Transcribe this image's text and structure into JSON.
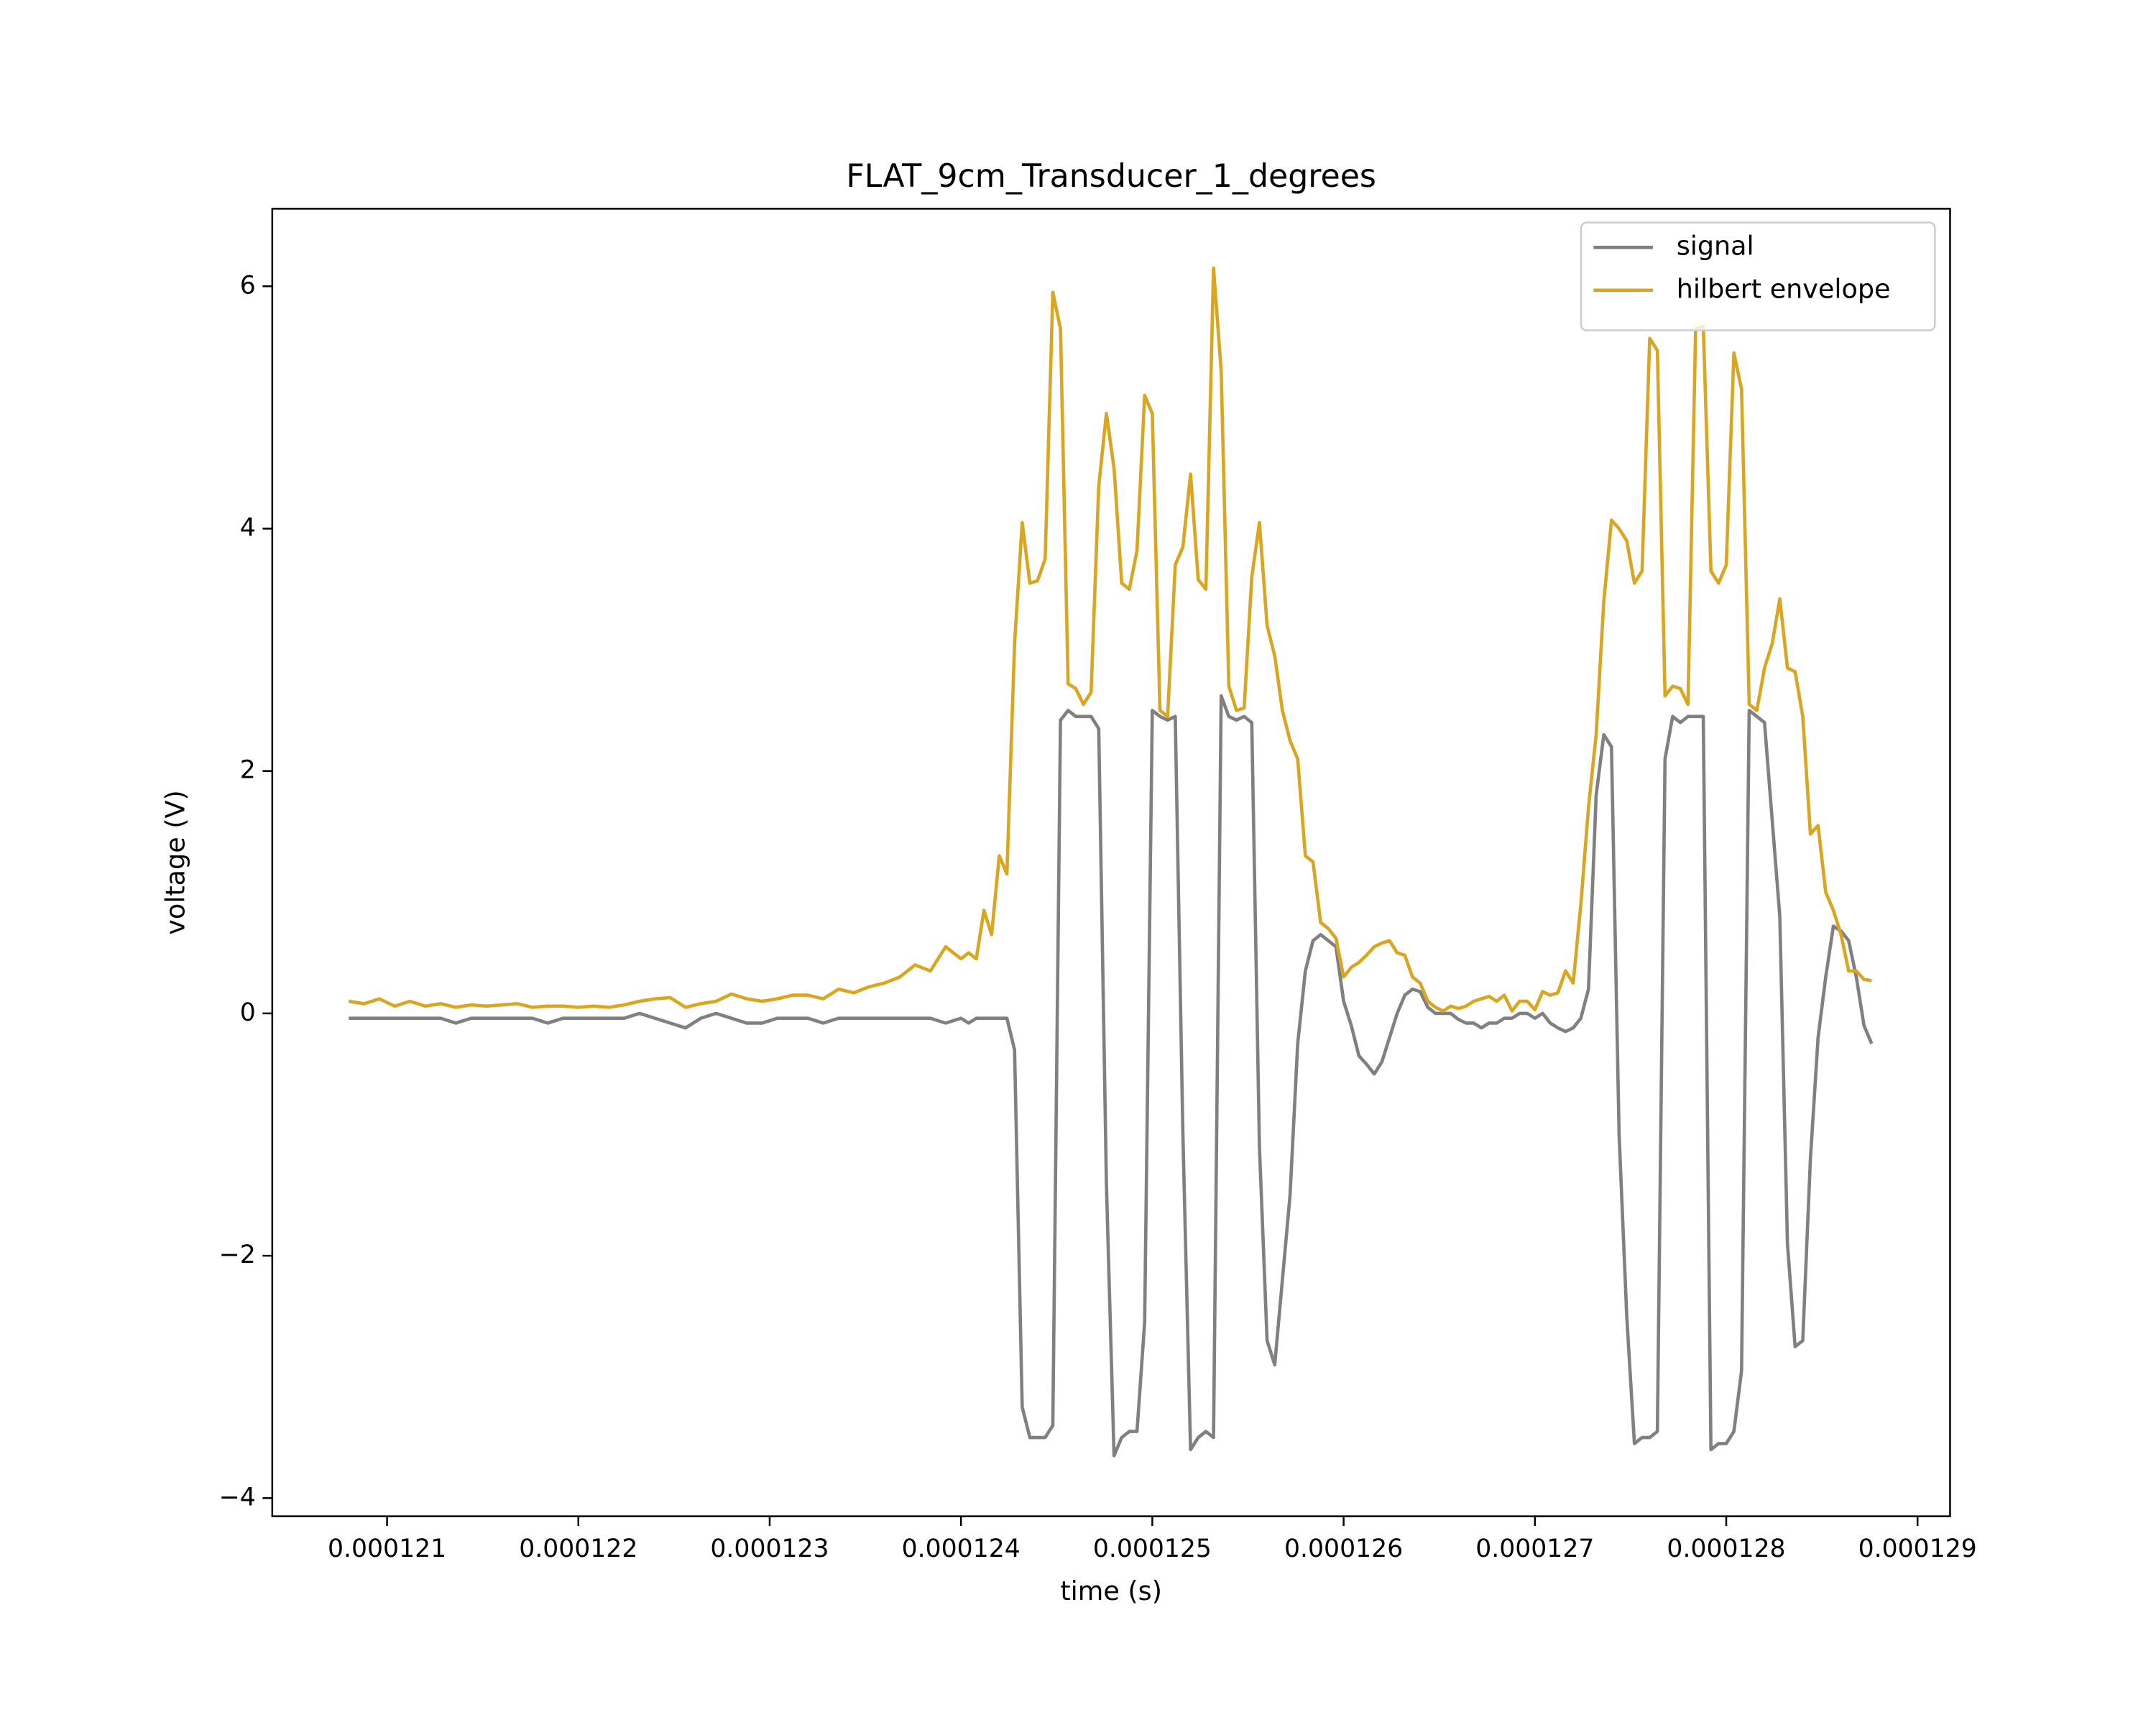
{
  "chart_data": {
    "type": "line",
    "title": "FLAT_9cm_Transducer_1_degrees",
    "x_label": "time (s)",
    "y_label": "voltage (V)",
    "xlim": [
      0.0001204,
      0.00012917
    ],
    "ylim": [
      -4.15,
      6.64
    ],
    "xticks": [
      0.000121,
      0.000122,
      0.000123,
      0.000124,
      0.000125,
      0.000126,
      0.000127,
      0.000128,
      0.000129
    ],
    "yticks": [
      {
        "value": -4,
        "label": "−4"
      },
      {
        "value": -2,
        "label": "−2"
      },
      0,
      2,
      4,
      6
    ],
    "legend": "upper right",
    "x": [
      0.0001208,
      0.00012088,
      0.00012096,
      0.00012104,
      0.00012112,
      0.0001212,
      0.00012128,
      0.00012136,
      0.00012144,
      0.00012152,
      0.0001216,
      0.00012168,
      0.00012176,
      0.00012184,
      0.00012192,
      0.000122,
      0.00012208,
      0.00012216,
      0.00012224,
      0.00012232,
      0.0001224,
      0.00012248,
      0.00012256,
      0.00012264,
      0.00012272,
      0.0001228,
      0.00012288,
      0.00012296,
      0.00012304,
      0.00012312,
      0.0001232,
      0.00012328,
      0.00012336,
      0.00012344,
      0.00012352,
      0.0001236,
      0.00012368,
      0.00012376,
      0.00012384,
      0.00012392,
      0.000124,
      0.00012404,
      0.00012408,
      0.00012412,
      0.00012416,
      0.0001242,
      0.00012424,
      0.00012428,
      0.00012432,
      0.00012436,
      0.0001244,
      0.00012444,
      0.00012448,
      0.00012452,
      0.00012456,
      0.0001246,
      0.00012464,
      0.00012468,
      0.00012472,
      0.00012476,
      0.0001248,
      0.00012484,
      0.00012488,
      0.00012492,
      0.00012496,
      0.000125,
      0.00012504,
      0.00012508,
      0.00012512,
      0.00012516,
      0.0001252,
      0.00012524,
      0.00012528,
      0.00012532,
      0.00012536,
      0.0001254,
      0.00012544,
      0.00012548,
      0.00012552,
      0.00012556,
      0.0001256,
      0.00012564,
      0.00012568,
      0.00012572,
      0.00012576,
      0.0001258,
      0.00012584,
      0.00012588,
      0.00012592,
      0.00012596,
      0.000126,
      0.00012604,
      0.00012608,
      0.00012612,
      0.00012616,
      0.0001262,
      0.00012624,
      0.00012628,
      0.00012632,
      0.00012636,
      0.0001264,
      0.00012644,
      0.00012648,
      0.00012652,
      0.00012656,
      0.0001266,
      0.00012664,
      0.00012668,
      0.00012672,
      0.00012676,
      0.0001268,
      0.00012684,
      0.00012688,
      0.00012692,
      0.00012696,
      0.000127,
      0.00012704,
      0.00012708,
      0.00012712,
      0.00012716,
      0.0001272,
      0.00012724,
      0.00012728,
      0.00012732,
      0.00012736,
      0.0001274,
      0.00012744,
      0.00012748,
      0.00012752,
      0.00012756,
      0.0001276,
      0.00012764,
      0.00012768,
      0.00012772,
      0.00012776,
      0.0001278,
      0.00012784,
      0.00012788,
      0.00012792,
      0.00012796,
      0.000128,
      0.00012804,
      0.00012808,
      0.00012812,
      0.00012816,
      0.0001282,
      0.00012824,
      0.00012828,
      0.00012832,
      0.00012836,
      0.0001284,
      0.00012844,
      0.00012848,
      0.00012852,
      0.00012856,
      0.0001286,
      0.00012864,
      0.00012868,
      0.00012872,
      0.00012876
    ],
    "series": [
      {
        "name": "signal",
        "color": "#808080",
        "values": [
          -0.04,
          -0.04,
          -0.04,
          -0.04,
          -0.04,
          -0.04,
          -0.04,
          -0.08,
          -0.04,
          -0.04,
          -0.04,
          -0.04,
          -0.04,
          -0.08,
          -0.04,
          -0.04,
          -0.04,
          -0.04,
          -0.04,
          0,
          -0.04,
          -0.08,
          -0.12,
          -0.04,
          0,
          -0.04,
          -0.08,
          -0.08,
          -0.04,
          -0.04,
          -0.04,
          -0.08,
          -0.04,
          -0.04,
          -0.04,
          -0.04,
          -0.04,
          -0.04,
          -0.04,
          -0.08,
          -0.04,
          -0.08,
          -0.04,
          -0.04,
          -0.04,
          -0.04,
          -0.04,
          -0.3,
          -3.25,
          -3.5,
          -3.5,
          -3.5,
          -3.4,
          2.42,
          2.5,
          2.45,
          2.45,
          2.45,
          2.35,
          -1.4,
          -3.65,
          -3.5,
          -3.45,
          -3.45,
          -2.55,
          2.5,
          2.45,
          2.42,
          2.45,
          -1.0,
          -3.6,
          -3.5,
          -3.45,
          -3.5,
          2.62,
          2.45,
          2.42,
          2.45,
          2.4,
          -1.1,
          -2.7,
          -2.9,
          -2.2,
          -1.5,
          -0.25,
          0.35,
          0.6,
          0.65,
          0.6,
          0.55,
          0.1,
          -0.1,
          -0.35,
          -0.42,
          -0.5,
          -0.4,
          -0.2,
          0,
          0.15,
          0.2,
          0.18,
          0.05,
          0,
          0,
          0,
          -0.05,
          -0.08,
          -0.08,
          -0.12,
          -0.08,
          -0.08,
          -0.04,
          -0.04,
          0,
          0,
          -0.04,
          0,
          -0.08,
          -0.12,
          -0.15,
          -0.12,
          -0.04,
          0.2,
          1.8,
          2.3,
          2.2,
          -1.0,
          -2.5,
          -3.55,
          -3.5,
          -3.5,
          -3.45,
          2.1,
          2.45,
          2.4,
          2.45,
          2.45,
          2.45,
          -3.6,
          -3.55,
          -3.55,
          -3.45,
          -2.95,
          2.5,
          2.45,
          2.4,
          1.6,
          0.8,
          -1.9,
          -2.75,
          -2.7,
          -1.2,
          -0.2,
          0.3,
          0.72,
          0.68,
          0.6,
          0.3,
          -0.1,
          -0.25
        ]
      },
      {
        "name": "hilbert envelope",
        "color": "#daa520",
        "values": [
          0.1,
          0.08,
          0.12,
          0.06,
          0.1,
          0.06,
          0.08,
          0.05,
          0.07,
          0.06,
          0.07,
          0.08,
          0.05,
          0.06,
          0.06,
          0.05,
          0.06,
          0.05,
          0.07,
          0.1,
          0.12,
          0.13,
          0.05,
          0.08,
          0.1,
          0.16,
          0.12,
          0.1,
          0.12,
          0.15,
          0.15,
          0.12,
          0.2,
          0.17,
          0.22,
          0.25,
          0.3,
          0.4,
          0.35,
          0.55,
          0.45,
          0.5,
          0.45,
          0.85,
          0.65,
          1.3,
          1.15,
          3.05,
          4.05,
          3.55,
          3.57,
          3.75,
          5.95,
          5.65,
          2.72,
          2.68,
          2.55,
          2.65,
          4.35,
          4.95,
          4.5,
          3.55,
          3.5,
          3.82,
          5.1,
          4.95,
          2.5,
          2.45,
          3.7,
          3.85,
          4.45,
          3.58,
          3.5,
          6.15,
          5.3,
          2.7,
          2.5,
          2.52,
          3.6,
          4.05,
          3.2,
          2.95,
          2.5,
          2.25,
          2.1,
          1.3,
          1.25,
          0.75,
          0.7,
          0.62,
          0.3,
          0.38,
          0.42,
          0.48,
          0.55,
          0.58,
          0.6,
          0.5,
          0.48,
          0.3,
          0.25,
          0.1,
          0.05,
          0.02,
          0.06,
          0.04,
          0.06,
          0.1,
          0.12,
          0.14,
          0.1,
          0.15,
          0.02,
          0.1,
          0.1,
          0.03,
          0.18,
          0.15,
          0.17,
          0.35,
          0.25,
          0.9,
          1.7,
          2.3,
          3.4,
          4.07,
          4.0,
          3.9,
          3.55,
          3.65,
          5.57,
          5.47,
          2.62,
          2.7,
          2.68,
          2.55,
          5.65,
          5.67,
          3.65,
          3.55,
          3.7,
          5.45,
          5.15,
          2.55,
          2.5,
          2.85,
          3.05,
          3.42,
          2.85,
          2.82,
          2.45,
          1.48,
          1.55,
          1.0,
          0.85,
          0.65,
          0.35,
          0.35,
          0.28,
          0.27
        ]
      }
    ]
  }
}
